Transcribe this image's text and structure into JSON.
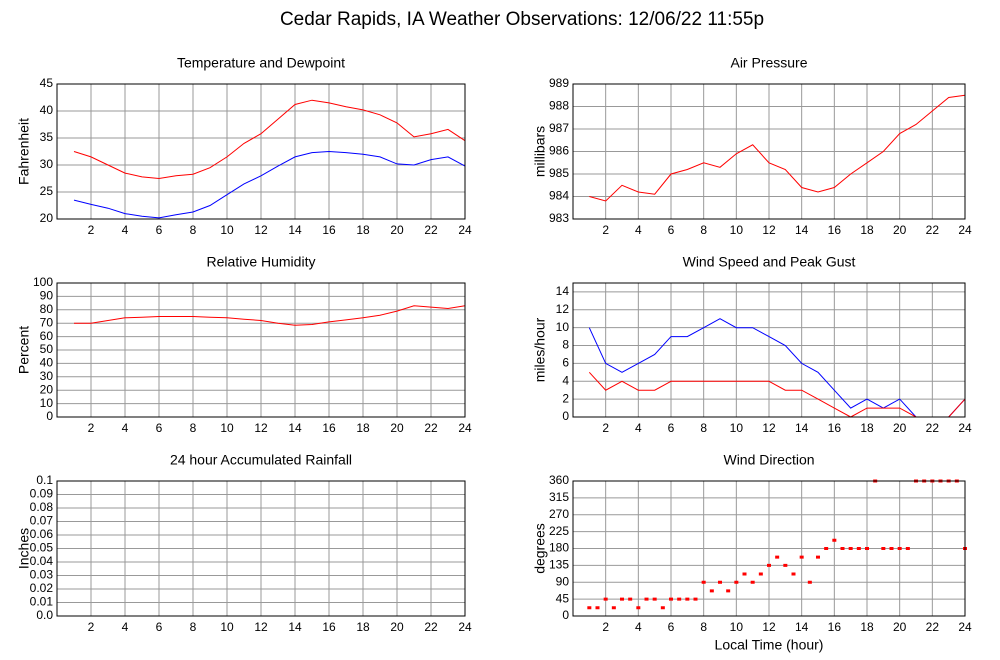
{
  "title": "Cedar Rapids, IA Weather Observations: 12/06/22 11:55p",
  "chart_data": [
    {
      "type": "line",
      "title": "Temperature and Dewpoint",
      "ylabel": "Fahrenheit",
      "x": [
        1,
        2,
        3,
        4,
        5,
        6,
        7,
        8,
        9,
        10,
        11,
        12,
        13,
        14,
        15,
        16,
        17,
        18,
        19,
        20,
        21,
        22,
        23,
        24
      ],
      "series": [
        {
          "color": "#ff0000",
          "values": [
            32.5,
            31.5,
            30,
            28.5,
            27.8,
            27.5,
            28,
            28.3,
            29.5,
            31.5,
            34,
            35.8,
            38.5,
            41.2,
            42,
            41.5,
            40.8,
            40.2,
            39.3,
            37.8,
            35.2,
            35.8,
            36.6,
            34.5
          ]
        },
        {
          "color": "#0000ff",
          "values": [
            23.5,
            22.7,
            22,
            21,
            20.5,
            20.2,
            20.8,
            21.3,
            22.5,
            24.5,
            26.5,
            28,
            29.8,
            31.5,
            32.3,
            32.5,
            32.3,
            32,
            31.5,
            30.2,
            30,
            31,
            31.5,
            29.8
          ]
        }
      ],
      "xlim": [
        0,
        24
      ],
      "xticks": [
        2,
        4,
        6,
        8,
        10,
        12,
        14,
        16,
        18,
        20,
        22,
        24
      ],
      "ylim": [
        20,
        45
      ],
      "yticks": [
        20,
        25,
        30,
        35,
        40,
        45
      ],
      "grid": true
    },
    {
      "type": "line",
      "title": "Air Pressure",
      "ylabel": "millibars",
      "x": [
        1,
        2,
        3,
        4,
        5,
        6,
        7,
        8,
        9,
        10,
        11,
        12,
        13,
        14,
        15,
        16,
        17,
        18,
        19,
        20,
        21,
        22,
        23,
        24
      ],
      "series": [
        {
          "color": "#ff0000",
          "values": [
            984,
            983.8,
            984.5,
            984.2,
            984.1,
            985,
            985.2,
            985.5,
            985.3,
            985.9,
            986.3,
            985.5,
            985.2,
            984.4,
            984.2,
            984.4,
            985,
            985.5,
            986,
            986.8,
            987.2,
            987.8,
            988.4,
            988.5
          ]
        }
      ],
      "xlim": [
        0,
        24
      ],
      "xticks": [
        2,
        4,
        6,
        8,
        10,
        12,
        14,
        16,
        18,
        20,
        22,
        24
      ],
      "ylim": [
        983,
        989
      ],
      "yticks": [
        983,
        984,
        985,
        986,
        987,
        988,
        989
      ],
      "grid": true
    },
    {
      "type": "line",
      "title": "Relative Humidity",
      "ylabel": "Percent",
      "x": [
        1,
        2,
        3,
        4,
        5,
        6,
        7,
        8,
        9,
        10,
        11,
        12,
        13,
        14,
        15,
        16,
        17,
        18,
        19,
        20,
        21,
        22,
        23,
        24
      ],
      "series": [
        {
          "color": "#ff0000",
          "values": [
            70,
            70,
            72,
            74,
            74.5,
            75,
            75,
            75,
            74.5,
            74,
            73,
            72,
            70,
            68.5,
            69,
            71,
            72.5,
            74,
            76,
            79,
            83,
            82,
            81,
            83
          ]
        }
      ],
      "xlim": [
        0,
        24
      ],
      "xticks": [
        2,
        4,
        6,
        8,
        10,
        12,
        14,
        16,
        18,
        20,
        22,
        24
      ],
      "ylim": [
        0,
        100
      ],
      "yticks": [
        0,
        10,
        20,
        30,
        40,
        50,
        60,
        70,
        80,
        90,
        100
      ],
      "grid": true
    },
    {
      "type": "line",
      "title": "Wind Speed and Peak Gust",
      "ylabel": "miles/hour",
      "x": [
        1,
        2,
        3,
        4,
        5,
        6,
        7,
        8,
        9,
        10,
        11,
        12,
        13,
        14,
        15,
        16,
        17,
        18,
        19,
        20,
        21,
        22,
        23,
        24
      ],
      "series": [
        {
          "color": "#0000ff",
          "values": [
            10,
            6,
            5,
            6,
            7,
            9,
            9,
            10,
            11,
            10,
            10,
            9,
            8,
            6,
            5,
            3,
            1,
            2,
            1,
            2,
            0,
            0,
            0,
            2
          ]
        },
        {
          "color": "#ff0000",
          "values": [
            5,
            3,
            4,
            3,
            3,
            4,
            4,
            4,
            4,
            4,
            4,
            4,
            3,
            3,
            2,
            1,
            0,
            1,
            1,
            1,
            0,
            0,
            0,
            2
          ]
        }
      ],
      "xlim": [
        0,
        24
      ],
      "xticks": [
        2,
        4,
        6,
        8,
        10,
        12,
        14,
        16,
        18,
        20,
        22,
        24
      ],
      "ylim": [
        0,
        15
      ],
      "yticks": [
        0,
        2,
        4,
        6,
        8,
        10,
        12,
        14
      ],
      "grid": true
    },
    {
      "type": "line",
      "title": "24 hour Accumulated Rainfall",
      "ylabel": "Inches",
      "x": [
        1,
        2,
        3,
        4,
        5,
        6,
        7,
        8,
        9,
        10,
        11,
        12,
        13,
        14,
        15,
        16,
        17,
        18,
        19,
        20,
        21,
        22,
        23,
        24
      ],
      "series": [
        {
          "color": "#ff0000",
          "values": [
            0,
            0,
            0,
            0,
            0,
            0,
            0,
            0,
            0,
            0,
            0,
            0,
            0,
            0,
            0,
            0,
            0,
            0,
            0,
            0,
            0,
            0,
            0,
            0
          ]
        }
      ],
      "xlim": [
        0,
        24
      ],
      "xticks": [
        2,
        4,
        6,
        8,
        10,
        12,
        14,
        16,
        18,
        20,
        22,
        24
      ],
      "ylim": [
        0,
        0.1
      ],
      "yticks": [
        {
          "value": 0,
          "label": "0.0"
        },
        0.01,
        0.02,
        0.03,
        0.04,
        0.05,
        0.06,
        0.07,
        0.08,
        0.09,
        0.1
      ],
      "grid": true
    },
    {
      "type": "scatter",
      "title": "Wind Direction",
      "ylabel": "degrees",
      "xlabel": "Local Time (hour)",
      "x": [
        1,
        1.5,
        2,
        2.5,
        3,
        3.5,
        4,
        4.5,
        5,
        5.5,
        6,
        6.5,
        7,
        7.5,
        8,
        8.5,
        9,
        9.5,
        10,
        10.5,
        11,
        11.5,
        12,
        12.5,
        13,
        13.5,
        14,
        14.5,
        15,
        15.5,
        16,
        16.5,
        17,
        17.5,
        18,
        18.5,
        19,
        19.5,
        20,
        20.5,
        21,
        21.5,
        22,
        22.5,
        23,
        23.5,
        24
      ],
      "series": [
        {
          "color": "#ff0000",
          "values": [
            22,
            22,
            45,
            22,
            45,
            45,
            22,
            45,
            45,
            22,
            45,
            45,
            45,
            45,
            90,
            67,
            90,
            67,
            90,
            112,
            90,
            112,
            135,
            157,
            135,
            112,
            157,
            90,
            157,
            180,
            202,
            180,
            180,
            180,
            180,
            360,
            180,
            180,
            180,
            180,
            360,
            360,
            360,
            360,
            360,
            360,
            180
          ]
        }
      ],
      "xlim": [
        0,
        24
      ],
      "xticks": [
        2,
        4,
        6,
        8,
        10,
        12,
        14,
        16,
        18,
        20,
        22,
        24
      ],
      "ylim": [
        0,
        360
      ],
      "yticks": [
        0,
        45,
        90,
        135,
        180,
        225,
        270,
        315,
        360
      ],
      "grid": true
    }
  ]
}
